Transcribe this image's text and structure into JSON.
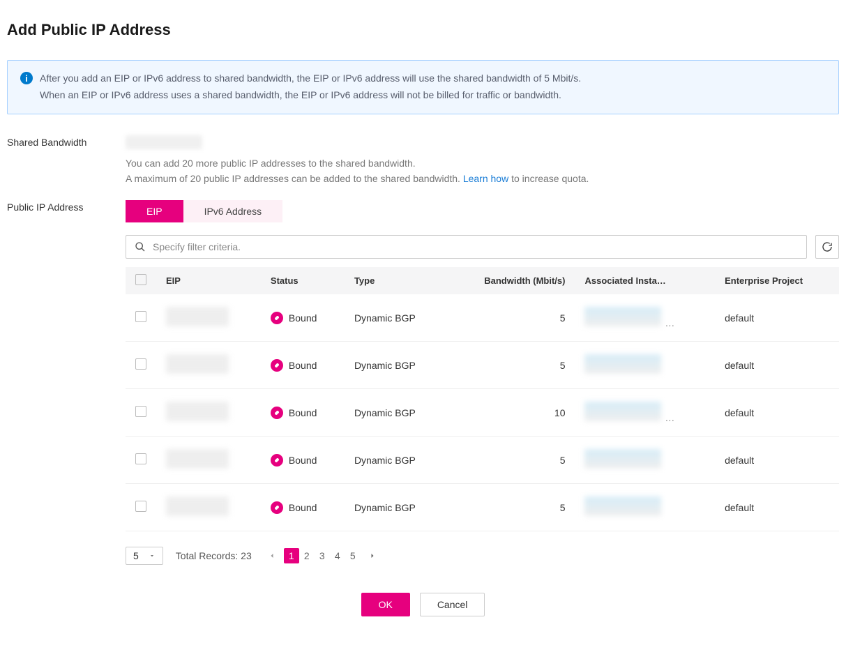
{
  "page": {
    "title": "Add Public IP Address"
  },
  "info": {
    "line1": "After you add an EIP or IPv6 address to shared bandwidth, the EIP or IPv6 address will use the shared bandwidth of 5 Mbit/s.",
    "line2": "When an EIP or IPv6 address uses a shared bandwidth, the EIP or IPv6 address will not be billed for traffic or bandwidth."
  },
  "form": {
    "shared_bandwidth_label": "Shared Bandwidth",
    "shared_bandwidth_help1": "You can add 20 more public IP addresses to the shared bandwidth.",
    "shared_bandwidth_help2_a": "A maximum of 20 public IP addresses can be added to the shared bandwidth. ",
    "shared_bandwidth_help2_link": "Learn how",
    "shared_bandwidth_help2_b": " to increase quota.",
    "public_ip_label": "Public IP Address"
  },
  "tabs": {
    "eip": "EIP",
    "ipv6": "IPv6 Address"
  },
  "search": {
    "placeholder": "Specify filter criteria."
  },
  "table": {
    "columns": {
      "eip": "EIP",
      "status": "Status",
      "type": "Type",
      "bandwidth": "Bandwidth (Mbit/s)",
      "instance": "Associated Insta…",
      "project": "Enterprise Project"
    },
    "rows": [
      {
        "status": "Bound",
        "type": "Dynamic BGP",
        "bandwidth": "5",
        "project": "default",
        "has_ellipsis": true
      },
      {
        "status": "Bound",
        "type": "Dynamic BGP",
        "bandwidth": "5",
        "project": "default",
        "has_ellipsis": false
      },
      {
        "status": "Bound",
        "type": "Dynamic BGP",
        "bandwidth": "10",
        "project": "default",
        "has_ellipsis": true
      },
      {
        "status": "Bound",
        "type": "Dynamic BGP",
        "bandwidth": "5",
        "project": "default",
        "has_ellipsis": false
      },
      {
        "status": "Bound",
        "type": "Dynamic BGP",
        "bandwidth": "5",
        "project": "default",
        "has_ellipsis": false
      }
    ]
  },
  "pagination": {
    "page_size": "5",
    "total_label": "Total Records: 23",
    "pages": [
      "1",
      "2",
      "3",
      "4",
      "5"
    ]
  },
  "buttons": {
    "ok": "OK",
    "cancel": "Cancel"
  },
  "colors": {
    "accent": "#e6007e",
    "info_border": "#a6d0ff",
    "info_bg": "#f0f7ff",
    "info_icon": "#007acc",
    "link": "#1a7dd6"
  }
}
